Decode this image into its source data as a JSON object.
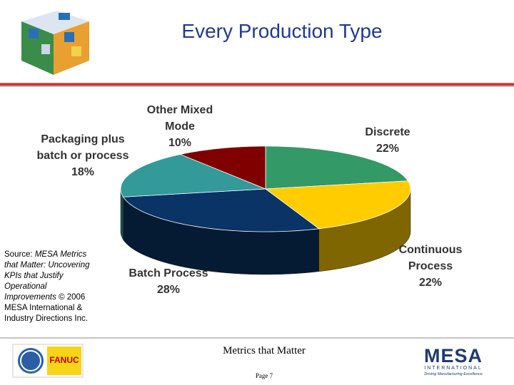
{
  "slide": {
    "title": "Every Production Type"
  },
  "chart_data": {
    "type": "pie",
    "categories": [
      "Discrete",
      "Continuous Process",
      "Batch Process",
      "Packaging plus batch or process",
      "Other Mixed Mode"
    ],
    "values": [
      22,
      22,
      28,
      18,
      10
    ],
    "value_labels": [
      "22%",
      "22%",
      "28%",
      "18%",
      "10%"
    ],
    "colors": [
      "#339966",
      "#ffcc00",
      "#0a3366",
      "#339999",
      "#800000"
    ]
  },
  "source_note": {
    "prefix": "Source:",
    "title": "MESA Metrics that Matter: Uncovering KPIs that Justify Operational Improvements",
    "credit": "© 2006 MESA International & Industry Directions Inc."
  },
  "footer": {
    "text": "Metrics that Matter",
    "page": "Page 7",
    "left_logo": "FANUC",
    "right_logo": "MESA",
    "right_logo_sub": "INTERNATIONAL",
    "right_logo_tagline": "Driving Manufacturing Excellence"
  }
}
